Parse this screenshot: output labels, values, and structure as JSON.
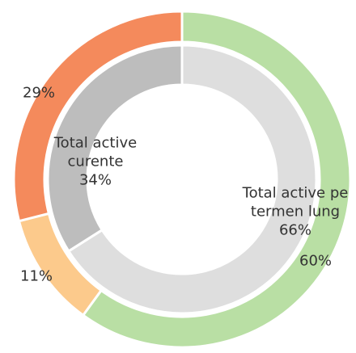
{
  "chart_data": {
    "type": "donut",
    "rings": [
      {
        "categories": [
          "Total active pe termen lung",
          "Total active curente"
        ],
        "values": [
          66,
          34
        ],
        "value_labels": [
          "66%",
          "34%"
        ],
        "colors": [
          "#dedede",
          "#bdbdbd"
        ]
      },
      {
        "values": [
          60,
          11,
          29
        ],
        "value_labels": [
          "60%",
          "11%",
          "29%"
        ],
        "colors": [
          "#b9dfa4",
          "#fcca8c",
          "#f48a5c"
        ]
      }
    ]
  }
}
